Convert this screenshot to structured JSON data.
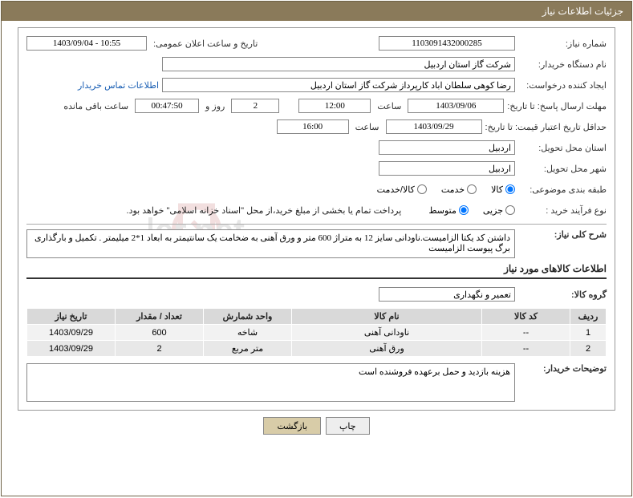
{
  "header": {
    "title": "جزئیات اطلاعات نیاز"
  },
  "labels": {
    "request_number": "شماره نیاز:",
    "announce_date": "تاریخ و ساعت اعلان عمومی:",
    "buyer_org": "نام دستگاه خریدار:",
    "requester": "ایجاد کننده درخواست:",
    "contact_link": "اطلاعات تماس خریدار",
    "response_deadline": "مهلت ارسال پاسخ: تا تاریخ:",
    "hour": "ساعت",
    "days_and": "روز و",
    "hours_remain": "ساعت باقی مانده",
    "price_validity": "حداقل تاریخ اعتبار قیمت: تا تاریخ:",
    "delivery_province": "استان محل تحویل:",
    "delivery_city": "شهر محل تحویل:",
    "category": "طبقه بندی موضوعی:",
    "process_type": "نوع فرآیند خرید :",
    "description": "شرح کلی نیاز:",
    "items_title": "اطلاعات کالاهای مورد نیاز",
    "goods_group": "گروه کالا:",
    "buyer_notes": "توضیحات خریدار:"
  },
  "fields": {
    "request_number": "1103091432000285",
    "announce_date": "1403/09/04 - 10:55",
    "buyer_org": "شرکت گاز استان اردبیل",
    "requester": "رضا کوهی سلطان اباد کارپرداز شرکت گاز استان اردبیل",
    "deadline_date": "1403/09/06",
    "deadline_time": "12:00",
    "days_remain": "2",
    "time_remain": "00:47:50",
    "validity_date": "1403/09/29",
    "validity_time": "16:00",
    "delivery_province": "اردبیل",
    "delivery_city": "اردبیل",
    "payment_note": "پرداخت تمام یا بخشی از مبلغ خرید،از محل \"اسناد خزانه اسلامی\" خواهد بود.",
    "description": "داشتن کد یکتا الزامیست.ناودانی سایز 12 به متراژ 600 متر و ورق آهنی به ضخامت یک سانتیمتر به ابعاد 1*2 میلیمتر . تکمیل و بارگذاری برگ پیوست الزامیست",
    "goods_group": "تعمیر و نگهداری",
    "buyer_notes": "هزینه بازدید و حمل برعهده فروشنده است"
  },
  "radios": {
    "goods": "کالا",
    "service": "خدمت",
    "goods_service": "کالا/خدمت",
    "minor": "جزیی",
    "medium": "متوسط"
  },
  "table": {
    "headers": [
      "ردیف",
      "کد کالا",
      "نام کالا",
      "واحد شمارش",
      "تعداد / مقدار",
      "تاریخ نیاز"
    ],
    "rows": [
      [
        "1",
        "--",
        "ناودانی آهنی",
        "شاخه",
        "600",
        "1403/09/29"
      ],
      [
        "2",
        "--",
        "ورق آهنی",
        "متر مربع",
        "2",
        "1403/09/29"
      ]
    ]
  },
  "buttons": {
    "print": "چاپ",
    "back": "بازگشت"
  },
  "colors": {
    "header_bg": "#8a7a5a",
    "border": "#6f6247",
    "th_bg": "#d9d9d9",
    "td_bg": "#f2f2f2",
    "link": "#1a5fb4",
    "btn_back": "#d8cca8"
  }
}
